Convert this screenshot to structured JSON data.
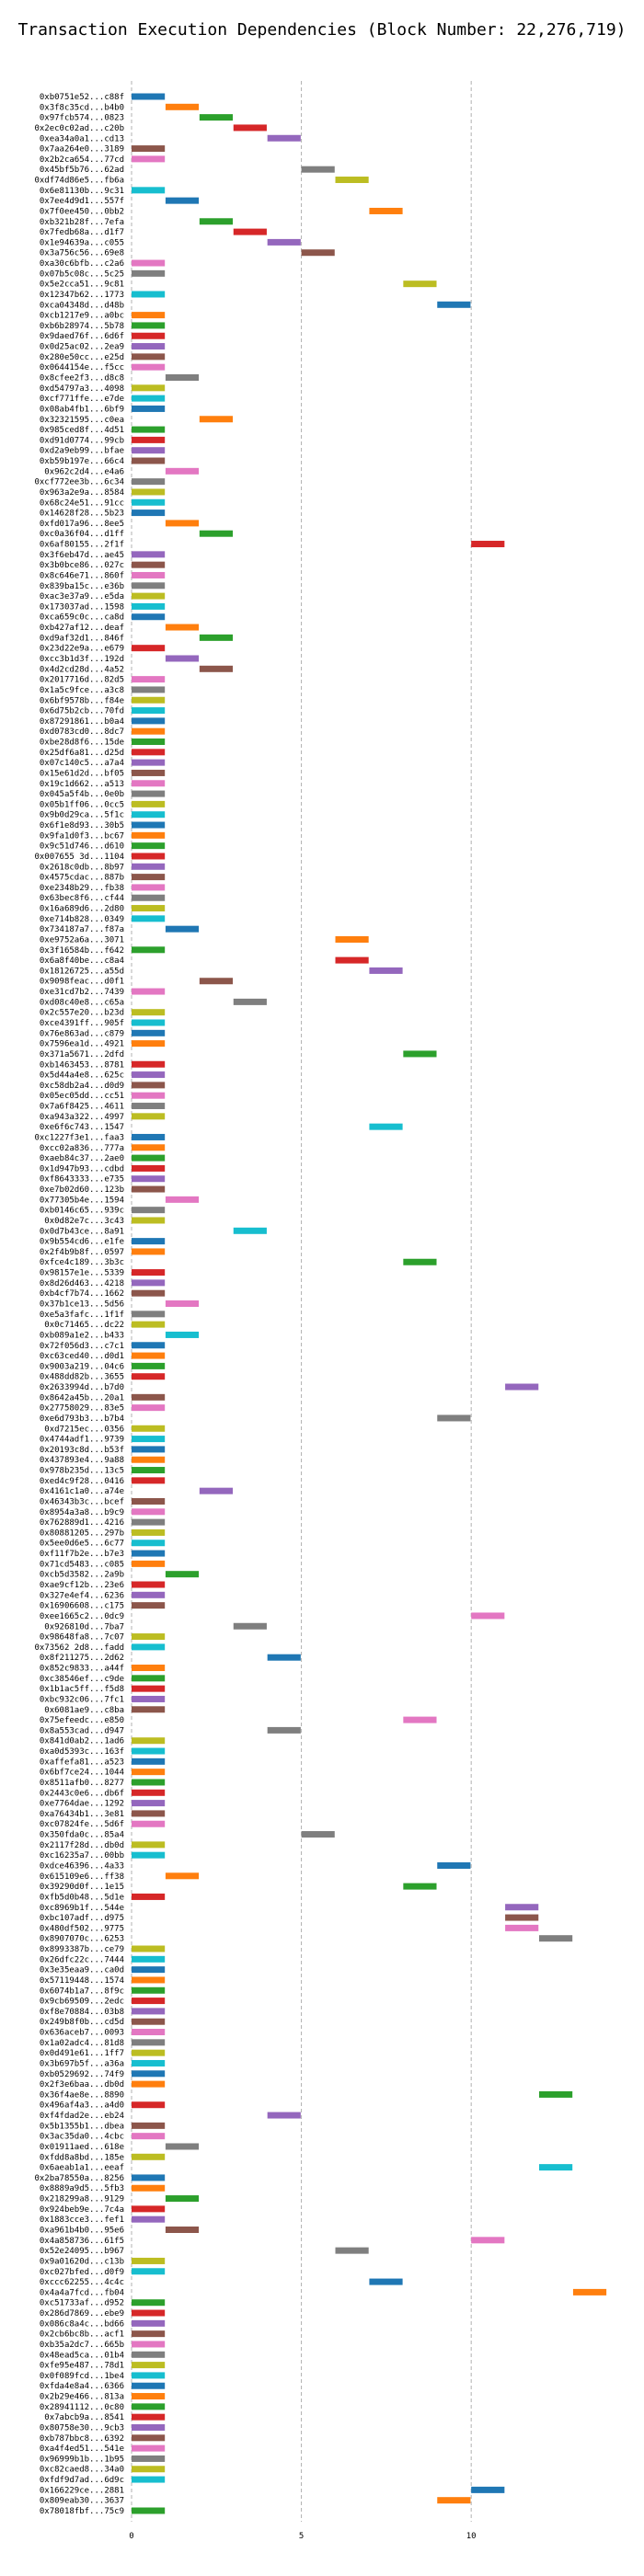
{
  "chart_data": {
    "type": "bar",
    "title": "Transaction Execution Dependencies (Block Number: 22,276,719)",
    "xlabel": "",
    "ylabel": "",
    "x_ticks": [
      0,
      5,
      10
    ],
    "xlim": [
      0,
      14.6
    ],
    "grid": "vertical dashed",
    "legend": "none",
    "palette": [
      "#1f77b4",
      "#ff7f0e",
      "#2ca02c",
      "#d62728",
      "#9467bd",
      "#8c564b",
      "#e377c2",
      "#7f7f7f",
      "#bcbd22",
      "#17becf"
    ],
    "tasks": [
      [
        "0xb0751e52...c88f",
        0
      ],
      [
        "0x3f8c35cd...b4b0",
        1
      ],
      [
        "0x97fcb574...0823",
        2
      ],
      [
        "0x2ec0c02ad...c20b",
        3
      ],
      [
        "0xea34a0a1...cd13",
        4
      ],
      [
        "0x7aa264e0...3189",
        0
      ],
      [
        "0x2b2ca654...77cd",
        0
      ],
      [
        "0x45bf5b76...62ad",
        5
      ],
      [
        "0xdf74d86e5...fb6a",
        6
      ],
      [
        "0x6e81130b...9c31",
        0
      ],
      [
        "0x7ee4d9d1...557f",
        1
      ],
      [
        "0x7f0ee450...0bb2",
        7
      ],
      [
        "0xb321b28f...7efa",
        2
      ],
      [
        "0x7fedb68a...d1f7",
        3
      ],
      [
        "0x1e94639a...c055",
        4
      ],
      [
        "0x3a756c56...69e8",
        5
      ],
      [
        "0xa30c6bfb...c2a6",
        0
      ],
      [
        "0x07b5c08c...5c25",
        0
      ],
      [
        "0x5e2cca51...9c81",
        8
      ],
      [
        "0x12347b62...1773",
        0
      ],
      [
        "0xca04348d...d48b",
        9
      ],
      [
        "0xcb1217e9...a0bc",
        0
      ],
      [
        "0xb6b28974...5b78",
        0
      ],
      [
        "0x9daed76f...6d6f",
        0
      ],
      [
        "0x0d25ac02...2ea9",
        0
      ],
      [
        "0x280e50cc...e25d",
        0
      ],
      [
        "0x0644154e...f5cc",
        0
      ],
      [
        "0x8cfee2f3...d8c8",
        1
      ],
      [
        "0xd54797a3...4098",
        0
      ],
      [
        "0xcf771ffe...e7de",
        0
      ],
      [
        "0x08ab4fb1...6bf9",
        0
      ],
      [
        "0x32321595...c0ea",
        2
      ],
      [
        "0x985ced8f...4d51",
        0
      ],
      [
        "0xd91d0774...99cb",
        0
      ],
      [
        "0xd2a9eb99...bfae",
        0
      ],
      [
        "0xb59b197e...66c4",
        0
      ],
      [
        "0x962c2d4...e4a6",
        1
      ],
      [
        "0xcf772ee3b...6c34",
        0
      ],
      [
        "0x963a2e9a...8584",
        0
      ],
      [
        "0x68c24e51...91cc",
        0
      ],
      [
        "0x14628f28...5b23",
        0
      ],
      [
        "0xfd017a96...8ee5",
        1
      ],
      [
        "0xc0a36f04...d1ff",
        2
      ],
      [
        "0x6af80155...2f1f",
        10
      ],
      [
        "0x3f6eb47d...ae45",
        0
      ],
      [
        "0x3b0bce86...027c",
        0
      ],
      [
        "0x8c646e71...860f",
        0
      ],
      [
        "0x839ba15c...e36b",
        0
      ],
      [
        "0xac3e37a9...e5da",
        0
      ],
      [
        "0x173037ad...1598",
        0
      ],
      [
        "0xca659c0c...ca8d",
        0
      ],
      [
        "0xb427af12...deaf",
        1
      ],
      [
        "0xd9af32d1...846f",
        2
      ],
      [
        "0x23d22e9a...e679",
        0
      ],
      [
        "0xcc3b1d3f...192d",
        1
      ],
      [
        "0x4d2cd28d...4a52",
        2
      ],
      [
        "0x2017716d...82d5",
        0
      ],
      [
        "0x1a5c9fce...a3c8",
        0
      ],
      [
        "0x6bf9578b...f84e",
        0
      ],
      [
        "0x6d75b2cb...70fd",
        0
      ],
      [
        "0x87291861...b0a4",
        0
      ],
      [
        "0xd0783cd0...8dc7",
        0
      ],
      [
        "0xbe28d8f6...15de",
        0
      ],
      [
        "0x25df6a81...d25d",
        0
      ],
      [
        "0x07c140c5...a7a4",
        0
      ],
      [
        "0x15e61d2d...bf05",
        0
      ],
      [
        "0x19c1d662...a513",
        0
      ],
      [
        "0x045a5f4b...0e0b",
        0
      ],
      [
        "0x05b1ff06...0cc5",
        0
      ],
      [
        "0x9b0d29ca...5f1c",
        0
      ],
      [
        "0x6f1e8d93...30b5",
        0
      ],
      [
        "0x9fa1d0f3...bc67",
        0
      ],
      [
        "0x9c51d746...d610",
        0
      ],
      [
        "0x007655 3d...1104",
        0
      ],
      [
        "0x2618c0db...8b97",
        0
      ],
      [
        "0x4575cdac...887b",
        0
      ],
      [
        "0xe2348b29...fb38",
        0
      ],
      [
        "0x63bec8f6...cf44",
        0
      ],
      [
        "0x16a689d6...2d80",
        0
      ],
      [
        "0xe714b828...0349",
        0
      ],
      [
        "0x734187a7...f87a",
        1
      ],
      [
        "0xe9752a6a...3071",
        6
      ],
      [
        "0x3f16584b...f642",
        0
      ],
      [
        "0x6a8f40be...c8a4",
        6
      ],
      [
        "0x18126725...a55d",
        7
      ],
      [
        "0x9098feac...d0f1",
        2
      ],
      [
        "0xe31cd7b2...7439",
        0
      ],
      [
        "0xd08c40e8...c65a",
        3
      ],
      [
        "0x2c557e20...b23d",
        0
      ],
      [
        "0xce4391ff...905f",
        0
      ],
      [
        "0x76e863ad...c879",
        0
      ],
      [
        "0x7596ea1d...4921",
        0
      ],
      [
        "0x371a5671...2dfd",
        8
      ],
      [
        "0xb1463453...8781",
        0
      ],
      [
        "0x5d44a4e8...625c",
        0
      ],
      [
        "0xc58db2a4...d0d9",
        0
      ],
      [
        "0x05ec05dd...cc51",
        0
      ],
      [
        "0x7a6f8425...4611",
        0
      ],
      [
        "0xa943a322...4997",
        0
      ],
      [
        "0xe6f6c743...1547",
        7
      ],
      [
        "0xc1227f3e1...faa3",
        0
      ],
      [
        "0xcc02a836...777a",
        0
      ],
      [
        "0xaeb84c37...2ae0",
        0
      ],
      [
        "0x1d947b93...cdbd",
        0
      ],
      [
        "0xf8643333...e735",
        0
      ],
      [
        "0xe7b02d60...123b",
        0
      ],
      [
        "0x77305b4e...1594",
        1
      ],
      [
        "0xb0146c65...939c",
        0
      ],
      [
        "0x0d82e7c...3c43",
        0
      ],
      [
        "0x0d7b43ce...8a91",
        3
      ],
      [
        "0x9b554cd6...e1fe",
        0
      ],
      [
        "0x2f4b9b8f...0597",
        0
      ],
      [
        "0xfce4c189...3b3c",
        8
      ],
      [
        "0x98157e1e...5339",
        0
      ],
      [
        "0x8d26d463...4218",
        0
      ],
      [
        "0xb4cf7b74...1662",
        0
      ],
      [
        "0x37b1ce13...5d56",
        1
      ],
      [
        "0xe5a3fafc...1f1f",
        0
      ],
      [
        "0x0c71465...dc22",
        0
      ],
      [
        "0xb089a1e2...b433",
        1
      ],
      [
        "0x72f056d3...c7c1",
        0
      ],
      [
        "0xc63ced40...d0d1",
        0
      ],
      [
        "0x9003a219...04c6",
        0
      ],
      [
        "0x488dd82b...3655",
        0
      ],
      [
        "0x2633994d...b7d0",
        11
      ],
      [
        "0x8642a45b...20a1",
        0
      ],
      [
        "0x27758029...83e5",
        0
      ],
      [
        "0xe6d793b3...b7b4",
        9
      ],
      [
        "0xd7215ec...0356",
        0
      ],
      [
        "0x4744adf1...9739",
        0
      ],
      [
        "0x20193c8d...b53f",
        0
      ],
      [
        "0x437893e4...9a88",
        0
      ],
      [
        "0x978b235d...13c5",
        0
      ],
      [
        "0xed4c9f28...0416",
        0
      ],
      [
        "0x4161c1a0...a74e",
        2
      ],
      [
        "0x46343b3c...bcef",
        0
      ],
      [
        "0x8954a3a8...b9c9",
        0
      ],
      [
        "0x762889d1...4216",
        0
      ],
      [
        "0x80881205...297b",
        0
      ],
      [
        "0x5ee0d6e5...6c77",
        0
      ],
      [
        "0xf11f7b2e...b7e3",
        0
      ],
      [
        "0x71cd5483...c085",
        0
      ],
      [
        "0xcb5d3582...2a9b",
        1
      ],
      [
        "0xae9cf12b...23e6",
        0
      ],
      [
        "0x327e4ef4...6236",
        0
      ],
      [
        "0x16906608...c175",
        0
      ],
      [
        "0xee1665c2...0dc9",
        10
      ],
      [
        "0x926810d...7ba7",
        3
      ],
      [
        "0x98648fa8...7c07",
        0
      ],
      [
        "0x73562 2d8...fadd",
        0
      ],
      [
        "0x8f211275...2d62",
        4
      ],
      [
        "0x852c9833...a44f",
        0
      ],
      [
        "0xc38546ef...c9de",
        0
      ],
      [
        "0x1b1ac5ff...f5d8",
        0
      ],
      [
        "0xbc932c06...7fc1",
        0
      ],
      [
        "0x6081ae9...c8ba",
        0
      ],
      [
        "0x75efeedc...e850",
        8
      ],
      [
        "0x8a553cad...d947",
        4
      ],
      [
        "0x841d0ab2...1ad6",
        0
      ],
      [
        "0xa0d5393c...163f",
        0
      ],
      [
        "0xaffefa81...a523",
        0
      ],
      [
        "0x6bf7ce24...1044",
        0
      ],
      [
        "0x8511afb0...8277",
        0
      ],
      [
        "0x2443c0e6...db6f",
        0
      ],
      [
        "0xe7764dae...1292",
        0
      ],
      [
        "0xa76434b1...3e81",
        0
      ],
      [
        "0xc07824fe...5d6f",
        0
      ],
      [
        "0x350fda0c...85a4",
        5
      ],
      [
        "0x2117f28d...db0d",
        0
      ],
      [
        "0xc16235a7...00bb",
        0
      ],
      [
        "0xdce46396...4a33",
        9
      ],
      [
        "0x615109e6...ff38",
        1
      ],
      [
        "0x39290d0f...1e15",
        8
      ],
      [
        "0xfb5d0b48...5d1e",
        0
      ],
      [
        "0xc8969b1f...544e",
        11
      ],
      [
        "0xbc107adf...d975",
        11
      ],
      [
        "0x480df502...9775",
        11
      ],
      [
        "0x8907070c...6253",
        12
      ],
      [
        "0x8993387b...ce79",
        0
      ],
      [
        "0x26dfc22c...7444",
        0
      ],
      [
        "0x3e35eaa9...ca0d",
        0
      ],
      [
        "0x57119448...1574",
        0
      ],
      [
        "0x6074b1a7...8f9c",
        0
      ],
      [
        "0x9cb69509...2edc",
        0
      ],
      [
        "0xf8e70884...03b8",
        0
      ],
      [
        "0x249b8f0b...cd5d",
        0
      ],
      [
        "0x636aceb7...0093",
        0
      ],
      [
        "0x1a02adc4...81d8",
        0
      ],
      [
        "0x0d491e61...1ff7",
        0
      ],
      [
        "0x3b697b5f...a36a",
        0
      ],
      [
        "0xb0529692...74f9",
        0
      ],
      [
        "0x2f3e6baa...db0d",
        0
      ],
      [
        "0x36f4ae8e...8890",
        12
      ],
      [
        "0x496af4a3...a4d0",
        0
      ],
      [
        "0xf4fdad2e...eb24",
        4
      ],
      [
        "0x5b1355b1...dbea",
        0
      ],
      [
        "0x3ac35da0...4cbc",
        0
      ],
      [
        "0x01911aed...618e",
        1
      ],
      [
        "0xfdd8a8bd...185e",
        0
      ],
      [
        "0x6aeab1a1...eeaf",
        12
      ],
      [
        "0x2ba78550a...8256",
        0
      ],
      [
        "0x8889a9d5...5fb3",
        0
      ],
      [
        "0x218299a8...9129",
        1
      ],
      [
        "0x924beb9e...7c4a",
        0
      ],
      [
        "0x1883cce3...fef1",
        0
      ],
      [
        "0xa961b4b0...95e6",
        1
      ],
      [
        "0x4a858736...61f5",
        10
      ],
      [
        "0x52e24095...b967",
        6
      ],
      [
        "0x9a01620d...c13b",
        0
      ],
      [
        "0xc027bfed...d0f9",
        0
      ],
      [
        "0xccc62255...4c4c",
        7
      ],
      [
        "0x4a4a7fcd...fb04",
        13
      ],
      [
        "0xc51733af...d952",
        0
      ],
      [
        "0x286d7869...ebe9",
        0
      ],
      [
        "0x086c8a4c...bd66",
        0
      ],
      [
        "0x2cb6bc8b...acf1",
        0
      ],
      [
        "0xb35a2dc7...665b",
        0
      ],
      [
        "0x48ead5ca...01b4",
        0
      ],
      [
        "0xfe95e487...78d1",
        0
      ],
      [
        "0x0f089fcd...1be4",
        0
      ],
      [
        "0xfda4e8a4...6366",
        0
      ],
      [
        "0x2b29e466...813a",
        0
      ],
      [
        "0x28941112...0c80",
        0
      ],
      [
        "0x7abcb9a...8541",
        0
      ],
      [
        "0x80758e30...9cb3",
        0
      ],
      [
        "0xb787bbc8...6392",
        0
      ],
      [
        "0xa4f4ed51...541e",
        0
      ],
      [
        "0x96999b1b...1b95",
        0
      ],
      [
        "0xc82caed8...34a0",
        0
      ],
      [
        "0xfdf9d7ad...6d9c",
        0
      ],
      [
        "0x166229ce...2881",
        10
      ],
      [
        "0x809eab30...3637",
        9
      ],
      [
        "0x78018fbf...75c9",
        0
      ]
    ]
  }
}
